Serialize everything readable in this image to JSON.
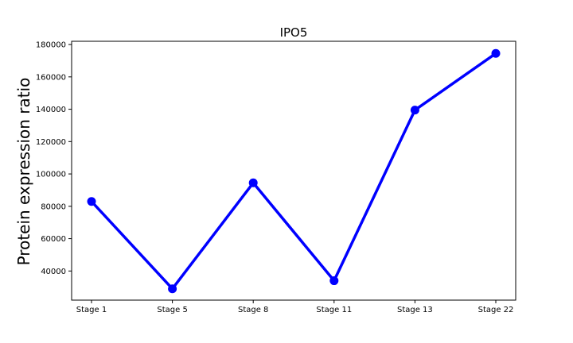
{
  "chart_data": {
    "type": "line",
    "title": "IPO5",
    "xlabel": "",
    "ylabel": "Protein expression ratio",
    "categories": [
      "Stage 1",
      "Stage 5",
      "Stage 8",
      "Stage 11",
      "Stage 13",
      "Stage 22"
    ],
    "series": [
      {
        "values": [
          83000,
          29000,
          94500,
          34000,
          139500,
          174500
        ]
      }
    ],
    "yticks": [
      40000,
      60000,
      80000,
      100000,
      120000,
      140000,
      160000,
      180000
    ],
    "ylim": [
      22000,
      182000
    ],
    "grid": false,
    "line_color": "#0000ff"
  }
}
